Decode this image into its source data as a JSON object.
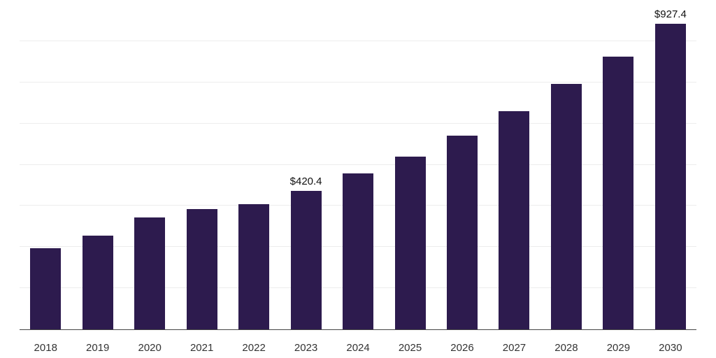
{
  "chart": {
    "bar_color": "#2d1b4e",
    "axis_color": "#444444",
    "gridline_color": "#ededed",
    "value_label_color": "#111111",
    "tick_label_color": "#333333",
    "background_color": "#ffffff"
  },
  "chart_data": {
    "type": "bar",
    "title": "",
    "xlabel": "",
    "ylabel": "",
    "categories": [
      "2018",
      "2019",
      "2020",
      "2021",
      "2022",
      "2023",
      "2024",
      "2025",
      "2026",
      "2027",
      "2028",
      "2029",
      "2030"
    ],
    "values": [
      246,
      285,
      339,
      366,
      380,
      420.4,
      474,
      525,
      589,
      663,
      746,
      829,
      927.4
    ],
    "data_labels": [
      null,
      null,
      null,
      null,
      null,
      "$420.4",
      null,
      null,
      null,
      null,
      null,
      null,
      "$927.4"
    ],
    "ylim": [
      0,
      1000
    ],
    "grid": "horizontal",
    "gridline_values": [
      125,
      250,
      375,
      500,
      625,
      750,
      875
    ],
    "legend_position": "none"
  }
}
